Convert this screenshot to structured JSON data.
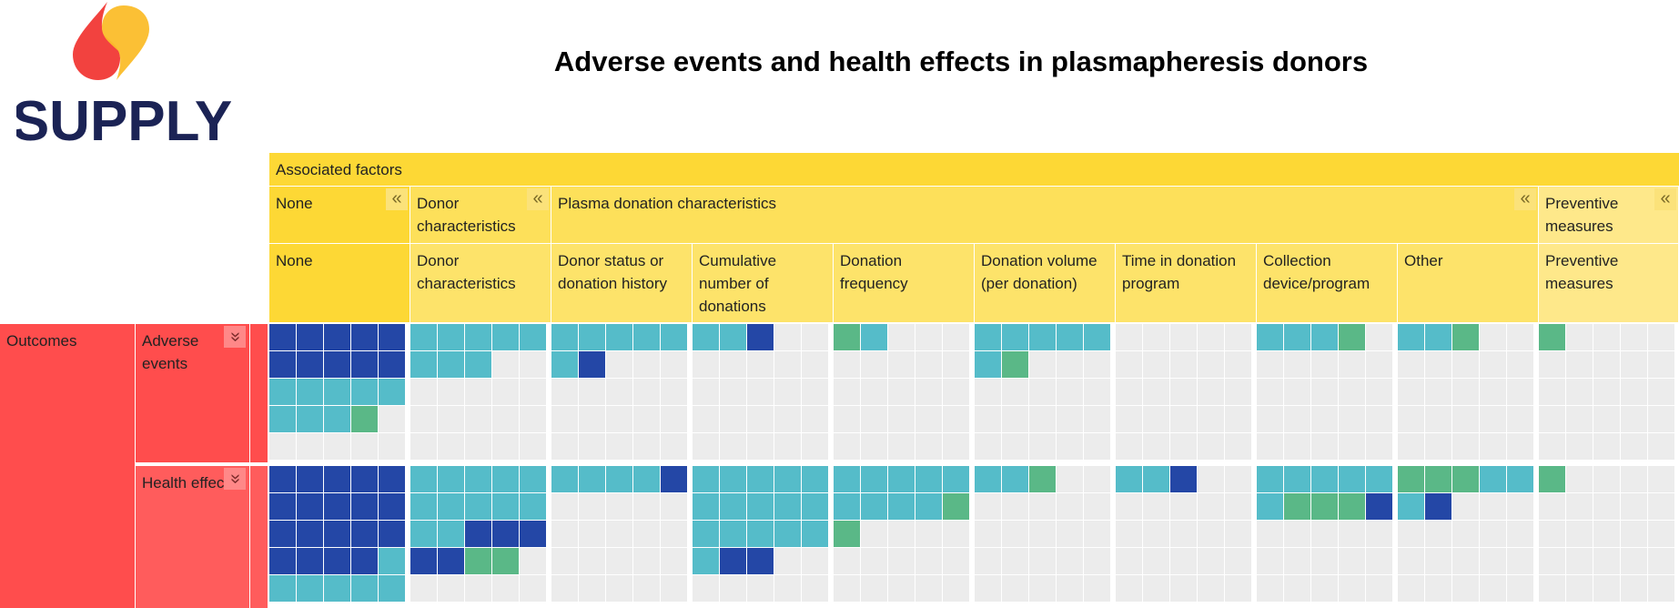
{
  "brand": {
    "name": "SUPPLY"
  },
  "page_title": "Adverse events and health effects in plasmapheresis donors",
  "headers": {
    "top": "Associated factors",
    "groups": [
      {
        "label": "None",
        "collapse_icon": "double-chevron-left-icon"
      },
      {
        "label": "Donor characteristics",
        "collapse_icon": "double-chevron-left-icon"
      },
      {
        "label": "Plasma donation characteristics",
        "collapse_icon": "double-chevron-left-icon"
      },
      {
        "label": "Preventive measures",
        "collapse_icon": "double-chevron-left-icon"
      }
    ],
    "columns": [
      "None",
      "Donor characteristics",
      "Donor status or donation history",
      "Cumulative number of donations",
      "Donation frequency",
      "Donation volume (per donation)",
      "Time in donation program",
      "Collection device/program",
      "Other",
      "Preventive measures"
    ]
  },
  "outcomes": {
    "label": "Outcomes",
    "rows": [
      {
        "label": "Adverse events",
        "collapse_icon": "double-chevron-down-icon"
      },
      {
        "label": "Health effects",
        "collapse_icon": "double-chevron-down-icon"
      }
    ]
  },
  "colors": {
    "dark_blue": "#2447a6",
    "teal": "#55bcc9",
    "green": "#5ab887",
    "empty": "#ececec"
  },
  "matrix": {
    "legend_codes": {
      "D": "dark_blue",
      "T": "teal",
      "G": "green"
    },
    "cells": [
      [
        [
          "D",
          "D",
          "D",
          "D",
          "D",
          "D",
          "D",
          "D",
          "D",
          "D",
          "T",
          "T",
          "T",
          "T",
          "T",
          "T",
          "T",
          "T",
          "G"
        ],
        [
          "T",
          "T",
          "T",
          "T",
          "T",
          "T",
          "T",
          "T"
        ],
        [
          "T",
          "T",
          "T",
          "T",
          "T",
          "T",
          "D"
        ],
        [
          "T",
          "T",
          "D"
        ],
        [
          "G",
          "T"
        ],
        [
          "T",
          "T",
          "T",
          "T",
          "T",
          "T",
          "G"
        ],
        [],
        [
          "T",
          "T",
          "T",
          "G"
        ],
        [
          "T",
          "T",
          "G"
        ],
        [
          "G"
        ]
      ],
      [
        [
          "D",
          "D",
          "D",
          "D",
          "D",
          "D",
          "D",
          "D",
          "D",
          "D",
          "D",
          "D",
          "D",
          "D",
          "D",
          "D",
          "D",
          "D",
          "D",
          "T",
          "T",
          "T",
          "T",
          "T",
          "T"
        ],
        [
          "T",
          "T",
          "T",
          "T",
          "T",
          "T",
          "T",
          "T",
          "T",
          "T",
          "T",
          "T",
          "D",
          "D",
          "D",
          "D",
          "D",
          "G",
          "G"
        ],
        [
          "T",
          "T",
          "T",
          "T",
          "D"
        ],
        [
          "T",
          "T",
          "T",
          "T",
          "T",
          "T",
          "T",
          "T",
          "T",
          "T",
          "T",
          "T",
          "T",
          "T",
          "T",
          "T",
          "D",
          "D"
        ],
        [
          "T",
          "T",
          "T",
          "T",
          "T",
          "T",
          "T",
          "T",
          "T",
          "G",
          "G"
        ],
        [
          "T",
          "T",
          "G"
        ],
        [
          "T",
          "T",
          "D"
        ],
        [
          "T",
          "T",
          "T",
          "T",
          "T",
          "T",
          "G",
          "G",
          "G",
          "D"
        ],
        [
          "G",
          "G",
          "G",
          "T",
          "T",
          "T",
          "D"
        ],
        [
          "G"
        ]
      ]
    ]
  }
}
